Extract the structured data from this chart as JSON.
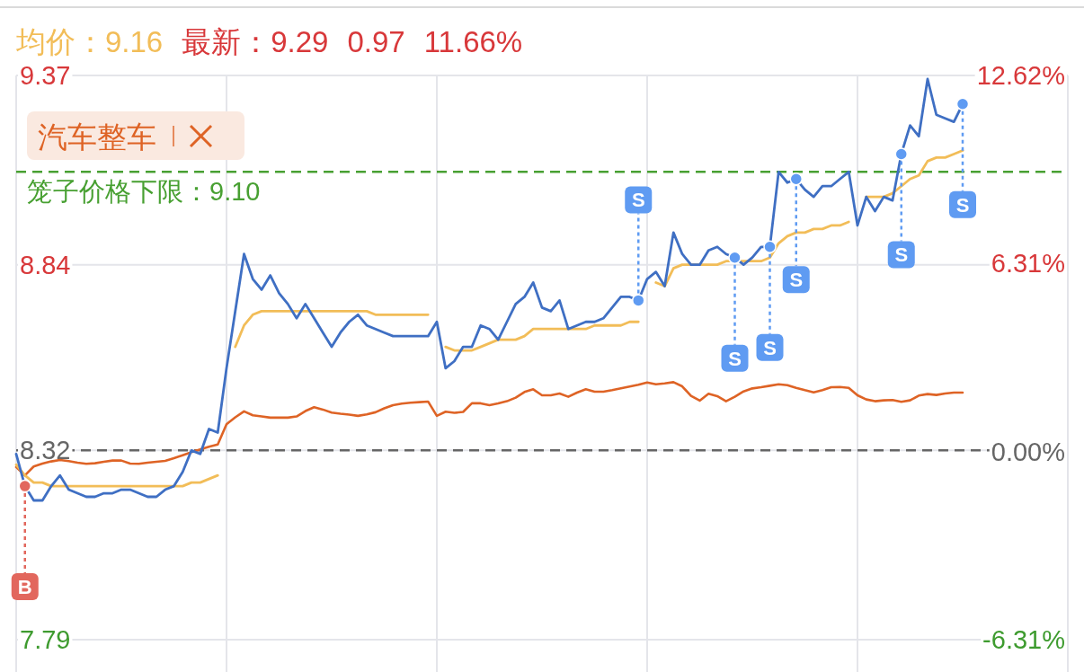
{
  "chart_data": {
    "type": "line",
    "annotations": [
      "均价：9.16",
      "最新：9.29",
      "0.97",
      "11.66%"
    ],
    "categories": [
      null,
      null,
      null,
      null,
      null,
      null,
      null,
      null,
      null,
      null,
      null,
      null,
      null,
      null,
      null,
      null,
      null,
      null,
      null,
      null,
      null,
      null,
      null,
      null,
      null,
      null,
      null,
      null,
      null,
      null,
      null,
      null,
      null,
      null,
      null,
      null,
      null,
      null,
      null,
      null,
      null,
      null,
      null,
      null,
      null,
      null,
      null,
      null,
      null,
      null,
      null,
      null,
      null,
      null,
      null,
      null,
      null,
      null,
      null,
      null,
      null,
      null,
      null,
      null,
      null,
      null,
      null,
      null,
      null,
      null,
      null,
      null,
      null,
      null,
      null,
      null,
      null,
      null,
      null,
      null,
      null,
      null,
      null,
      null,
      null,
      null,
      null,
      null,
      null,
      null,
      null,
      null,
      null,
      null,
      null,
      null,
      null,
      null,
      null,
      null,
      null,
      null,
      null,
      null,
      null,
      null,
      null,
      null,
      null,
      null,
      null,
      null,
      null,
      null,
      null,
      null,
      null,
      null,
      null,
      null,
      null
    ],
    "ylim": [
      7.79,
      9.37
    ],
    "yticks": [
      7.79,
      8.32,
      8.84,
      9.37
    ],
    "y2lim": [
      -6.31,
      12.62
    ],
    "y2ticks": [
      {
        "value": -6.31,
        "label": "-6.31%"
      },
      {
        "value": 0,
        "label": "0.00%"
      },
      {
        "value": 6.31,
        "label": "6.31%"
      },
      {
        "value": 12.62,
        "label": "12.62%"
      }
    ],
    "tick_labels": "y",
    "grid": true,
    "legend": "top left",
    "ref_lines": [
      {
        "axis": "y",
        "value": 9.1,
        "label": "笼子价格下限：9.10",
        "color": "#48a032",
        "line_style": "dashed"
      },
      {
        "axis": "y",
        "value": 8.32,
        "color": "#666666",
        "line_style": "dashed"
      }
    ],
    "series": [
      {
        "type": "line",
        "color": "#3f6fc3",
        "values": [
          8.31,
          8.22,
          8.18,
          8.18,
          8.22,
          8.25,
          8.21,
          8.2,
          8.19,
          8.19,
          8.2,
          8.2,
          8.21,
          8.21,
          8.2,
          8.19,
          8.19,
          8.21,
          8.22,
          8.26,
          8.32,
          8.31,
          8.38,
          8.37,
          8.55,
          8.71,
          8.87,
          8.8,
          8.77,
          8.81,
          8.76,
          8.73,
          8.69,
          8.73,
          8.69,
          8.65,
          8.61,
          8.65,
          8.68,
          8.7,
          8.67,
          8.66,
          8.65,
          8.64,
          8.64,
          8.64,
          8.64,
          8.64,
          8.68,
          8.55,
          8.57,
          8.61,
          8.61,
          8.67,
          8.66,
          8.63,
          8.68,
          8.73,
          8.75,
          8.79,
          8.72,
          8.71,
          8.74,
          8.66,
          8.67,
          8.68,
          8.68,
          8.69,
          8.72,
          8.75,
          8.75,
          8.74,
          8.8,
          8.82,
          8.78,
          8.93,
          8.87,
          8.84,
          8.84,
          8.88,
          8.89,
          8.87,
          8.86,
          8.84,
          8.86,
          8.89,
          8.89,
          9.1,
          9.07,
          9.08,
          9.05,
          9.03,
          9.06,
          9.06,
          9.08,
          9.1,
          8.95,
          9.03,
          8.99,
          9.03,
          9.02,
          9.15,
          9.23,
          9.2,
          9.36,
          9.26,
          9.25,
          9.24,
          9.29,
          null,
          null,
          null,
          null,
          null,
          null,
          null,
          null,
          null,
          null,
          null,
          null
        ]
      },
      {
        "type": "line",
        "color": "#f2bd58",
        "values": [
          8.28,
          8.25,
          8.23,
          8.23,
          8.22,
          8.22,
          8.22,
          8.22,
          8.22,
          8.22,
          8.22,
          8.22,
          8.22,
          8.22,
          8.22,
          8.22,
          8.22,
          8.22,
          8.22,
          8.22,
          8.23,
          8.23,
          8.24,
          8.25,
          null,
          8.61,
          8.67,
          8.7,
          8.71,
          8.71,
          8.71,
          8.71,
          8.71,
          8.71,
          8.71,
          8.71,
          8.71,
          8.71,
          8.71,
          8.71,
          8.71,
          8.7,
          8.7,
          8.7,
          8.7,
          8.7,
          8.7,
          8.7,
          null,
          8.61,
          8.6,
          8.6,
          8.6,
          8.61,
          8.62,
          8.63,
          8.63,
          8.63,
          8.64,
          8.66,
          8.66,
          8.66,
          8.66,
          8.66,
          8.66,
          8.66,
          8.67,
          8.67,
          8.67,
          8.67,
          8.68,
          8.68,
          null,
          8.79,
          8.78,
          8.83,
          8.84,
          8.84,
          8.84,
          8.84,
          8.84,
          8.85,
          8.85,
          8.85,
          8.85,
          8.85,
          8.86,
          8.9,
          8.92,
          8.93,
          8.93,
          8.94,
          8.94,
          8.95,
          8.95,
          8.96,
          null,
          9.03,
          9.03,
          9.03,
          9.04,
          9.06,
          9.08,
          9.09,
          9.13,
          9.14,
          9.14,
          9.15,
          9.16,
          null,
          null,
          null,
          null,
          null,
          null,
          null,
          null,
          null,
          null,
          null,
          null
        ]
      },
      {
        "name": "汽车整车",
        "type": "line",
        "axis": "y2",
        "color": "#de6325",
        "values": [
          -0.52,
          -0.8,
          -0.5,
          -0.4,
          -0.33,
          -0.28,
          -0.32,
          -0.37,
          -0.41,
          -0.39,
          -0.34,
          -0.3,
          -0.3,
          -0.4,
          -0.41,
          -0.37,
          -0.34,
          -0.31,
          -0.22,
          -0.12,
          -0.02,
          0.07,
          0.16,
          0.24,
          0.92,
          1.15,
          1.35,
          1.22,
          1.18,
          1.14,
          1.14,
          1.14,
          1.18,
          1.36,
          1.49,
          1.41,
          1.31,
          1.27,
          1.24,
          1.2,
          1.25,
          1.32,
          1.45,
          1.56,
          1.61,
          1.64,
          1.66,
          1.68,
          1.2,
          1.34,
          1.3,
          1.33,
          1.62,
          1.62,
          1.56,
          1.62,
          1.69,
          1.81,
          2.0,
          2.09,
          1.89,
          1.89,
          1.95,
          1.84,
          1.98,
          2.09,
          2.01,
          2.01,
          2.06,
          2.12,
          2.18,
          2.24,
          2.32,
          2.26,
          2.29,
          2.33,
          2.19,
          1.87,
          1.71,
          1.94,
          1.86,
          1.69,
          1.84,
          2.02,
          2.12,
          2.16,
          2.21,
          2.26,
          2.23,
          2.14,
          2.06,
          1.99,
          2.06,
          2.16,
          2.17,
          2.14,
          1.89,
          1.75,
          1.69,
          1.72,
          1.73,
          1.67,
          1.72,
          1.88,
          1.93,
          1.9,
          1.95,
          1.98,
          1.98,
          null,
          null,
          null,
          null,
          null,
          null,
          null,
          null,
          null,
          null,
          null,
          null
        ]
      },
      {
        "name": "B",
        "type": "scatter",
        "marker": "circle",
        "color": "#e2675d",
        "values": [
          null,
          8.22,
          null,
          null,
          null,
          null,
          null,
          null,
          null,
          null,
          null,
          null,
          null,
          null,
          null,
          null,
          null,
          null,
          null,
          null,
          null,
          null,
          null,
          null,
          null,
          null,
          null,
          null,
          null,
          null,
          null,
          null,
          null,
          null,
          null,
          null,
          null,
          null,
          null,
          null,
          null,
          null,
          null,
          null,
          null,
          null,
          null,
          null,
          null,
          null,
          null,
          null,
          null,
          null,
          null,
          null,
          null,
          null,
          null,
          null,
          null,
          null,
          null,
          null,
          null,
          null,
          null,
          null,
          null,
          null,
          null,
          null,
          null,
          null,
          null,
          null,
          null,
          null,
          null,
          null,
          null,
          null,
          null,
          null,
          null,
          null,
          null,
          null,
          null,
          null,
          null,
          null,
          null,
          null,
          null,
          null,
          null,
          null,
          null,
          null,
          null,
          null,
          null,
          null,
          null,
          null,
          null,
          null,
          null,
          null,
          null,
          null,
          null,
          null,
          null,
          null,
          null,
          null,
          null,
          null,
          null
        ]
      },
      {
        "name": "S",
        "type": "scatter",
        "marker": "circle",
        "color": "#5f9bf2",
        "values": [
          null,
          null,
          null,
          null,
          null,
          null,
          null,
          null,
          null,
          null,
          null,
          null,
          null,
          null,
          null,
          null,
          null,
          null,
          null,
          null,
          null,
          null,
          null,
          null,
          null,
          null,
          null,
          null,
          null,
          null,
          null,
          null,
          null,
          null,
          null,
          null,
          null,
          null,
          null,
          null,
          null,
          null,
          null,
          null,
          null,
          null,
          null,
          null,
          null,
          null,
          null,
          null,
          null,
          null,
          null,
          null,
          null,
          null,
          null,
          null,
          null,
          null,
          null,
          null,
          null,
          null,
          null,
          null,
          null,
          null,
          null,
          8.74,
          null,
          null,
          null,
          null,
          null,
          null,
          null,
          null,
          null,
          null,
          8.86,
          null,
          null,
          null,
          8.89,
          null,
          null,
          9.08,
          null,
          null,
          null,
          null,
          null,
          null,
          null,
          null,
          null,
          null,
          null,
          9.15,
          null,
          null,
          null,
          null,
          null,
          null,
          9.29,
          null,
          null,
          null,
          null,
          null,
          null,
          null,
          null,
          null,
          null,
          null,
          null
        ]
      }
    ]
  }
}
